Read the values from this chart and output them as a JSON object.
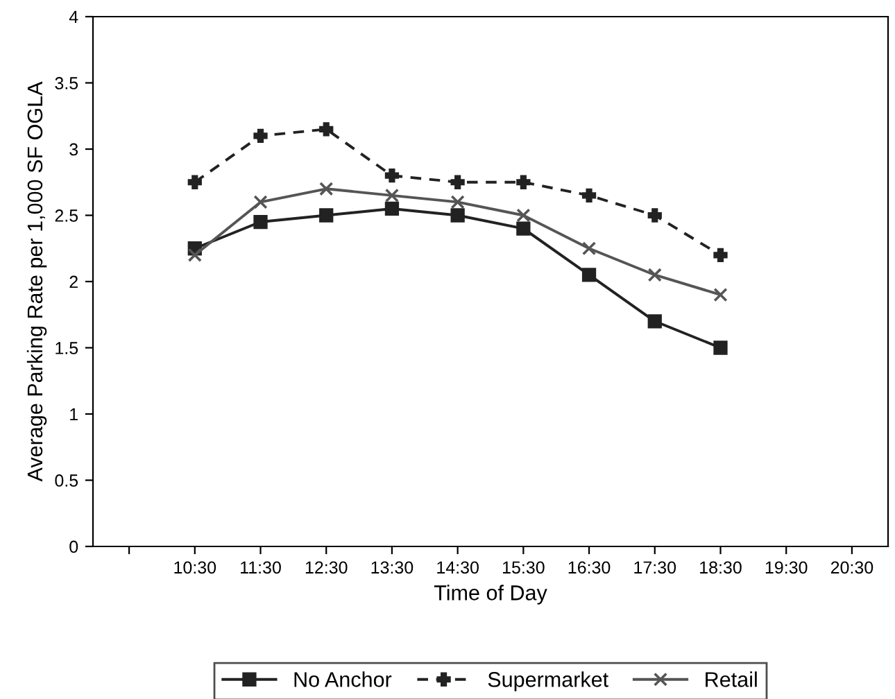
{
  "chart_data": {
    "type": "line",
    "xlabel": "Time of Day",
    "ylabel": "Average Parking Rate per 1,000 SF OGLA",
    "categories": [
      null,
      "10:30",
      "11:30",
      "12:30",
      "13:30",
      "14:30",
      "15:30",
      "16:30",
      "17:30",
      "18:30",
      "19:30",
      "20:30"
    ],
    "series": [
      {
        "name": "No Anchor",
        "color": "#222222",
        "marker": "square",
        "line_style": "solid",
        "values": [
          null,
          2.25,
          2.45,
          2.5,
          2.55,
          2.5,
          2.4,
          2.05,
          1.7,
          1.5,
          null,
          null
        ]
      },
      {
        "name": "Supermarket",
        "color": "#222222",
        "marker": "plus",
        "line_style": "dashed",
        "values": [
          null,
          2.75,
          3.1,
          3.15,
          2.8,
          2.75,
          2.75,
          2.65,
          2.5,
          2.2,
          null,
          null
        ]
      },
      {
        "name": "Retail",
        "color": "#555555",
        "marker": "cross",
        "line_style": "solid",
        "values": [
          null,
          2.2,
          2.6,
          2.7,
          2.65,
          2.6,
          2.5,
          2.25,
          2.05,
          1.9,
          null,
          null
        ]
      }
    ],
    "ylim": [
      0,
      4
    ],
    "yticks": [
      0,
      0.5,
      1,
      1.5,
      2,
      2.5,
      3,
      3.5,
      4
    ],
    "grid": false,
    "legend": "bottom"
  }
}
